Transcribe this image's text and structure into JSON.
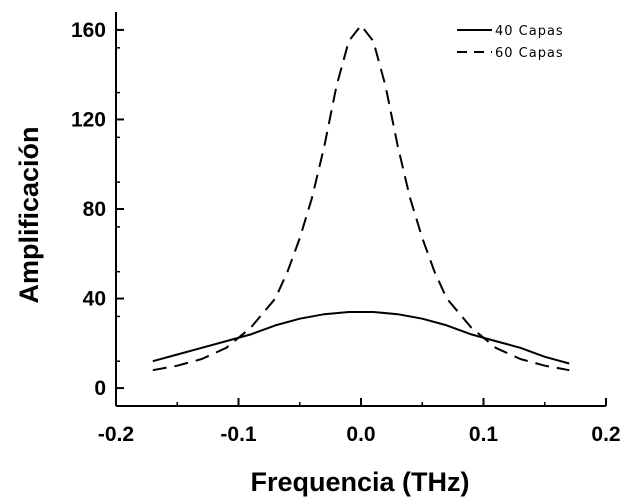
{
  "chart_data": {
    "type": "line",
    "xlabel": "Frequencia (THz)",
    "ylabel": "Amplificación",
    "xlim": [
      -0.2,
      0.2
    ],
    "ylim": [
      -8,
      168
    ],
    "x_ticks": [
      -0.2,
      -0.1,
      0.0,
      0.1,
      0.2
    ],
    "x_tick_labels": [
      "-0.2",
      "-0.1",
      "0.0",
      "0.1",
      "0.2"
    ],
    "y_ticks": [
      0,
      40,
      80,
      120,
      160
    ],
    "y_tick_labels": [
      "0",
      "40",
      "80",
      "120",
      "160"
    ],
    "grid": false,
    "legend_position": "top-right",
    "series": [
      {
        "name": "40 Capas",
        "style": "solid",
        "x": [
          -0.17,
          -0.15,
          -0.13,
          -0.11,
          -0.09,
          -0.07,
          -0.05,
          -0.03,
          -0.01,
          0.0,
          0.01,
          0.03,
          0.05,
          0.07,
          0.09,
          0.11,
          0.13,
          0.15,
          0.17
        ],
        "y": [
          12,
          15,
          18,
          21,
          24,
          28,
          31,
          33,
          34,
          34,
          34,
          33,
          31,
          28,
          24,
          21,
          18,
          14,
          11
        ]
      },
      {
        "name": "60 Capas",
        "style": "dashed",
        "x": [
          -0.17,
          -0.15,
          -0.13,
          -0.11,
          -0.09,
          -0.07,
          -0.06,
          -0.05,
          -0.04,
          -0.03,
          -0.02,
          -0.01,
          0.0,
          0.01,
          0.02,
          0.03,
          0.04,
          0.05,
          0.06,
          0.07,
          0.09,
          0.11,
          0.13,
          0.15,
          0.17
        ],
        "y": [
          8,
          10,
          13,
          18,
          27,
          40,
          52,
          67,
          85,
          108,
          135,
          155,
          162,
          155,
          135,
          108,
          85,
          67,
          52,
          40,
          27,
          18,
          13,
          10,
          8
        ]
      }
    ]
  }
}
